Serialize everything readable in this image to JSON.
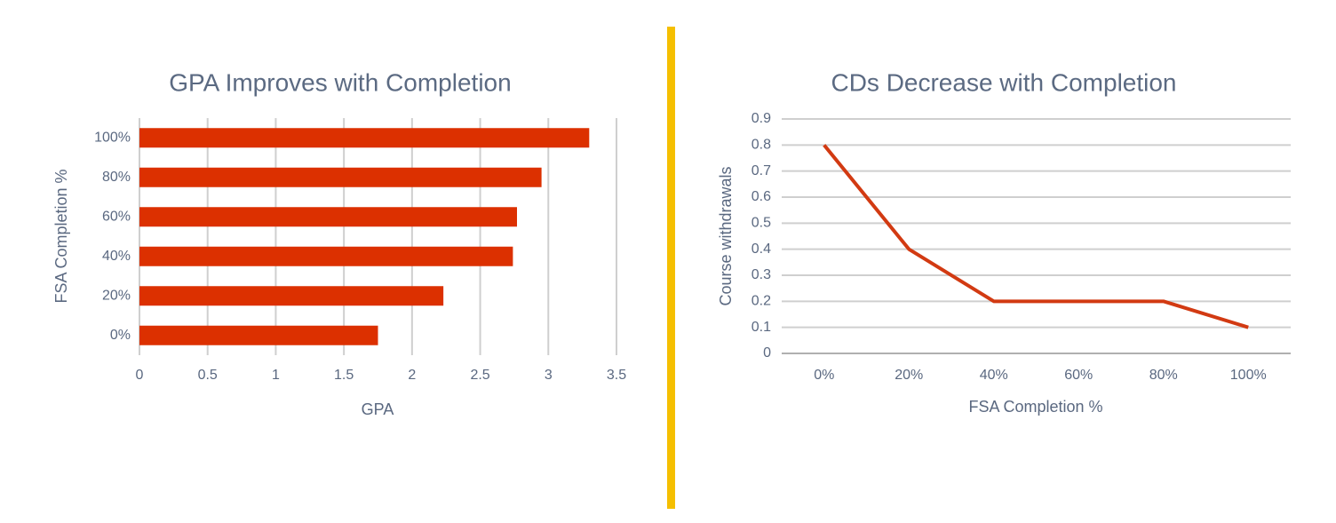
{
  "chart_data": [
    {
      "type": "barh",
      "title": "GPA Improves with Completion",
      "x_label": "GPA",
      "y_label": "FSA Completion %",
      "categories": [
        "0%",
        "20%",
        "40%",
        "60%",
        "80%",
        "100%"
      ],
      "values": [
        1.75,
        2.23,
        2.74,
        2.77,
        2.95,
        3.3
      ],
      "color": "#dc3000",
      "xlim": [
        0,
        3.5
      ],
      "xticks": [
        0,
        0.5,
        1,
        1.5,
        2,
        2.5,
        3,
        3.5
      ],
      "grid": true
    },
    {
      "type": "line",
      "title": "CDs Decrease with Completion",
      "x_label": "FSA Completion %",
      "y_label": "Course withdrawals",
      "categories": [
        "0%",
        "20%",
        "40%",
        "60%",
        "80%",
        "100%"
      ],
      "values": [
        0.8,
        0.4,
        0.2,
        0.2,
        0.2,
        0.1
      ],
      "color": "#d23a12",
      "ylim": [
        0,
        0.9
      ],
      "yticks": [
        0,
        0.1,
        0.2,
        0.3,
        0.4,
        0.5,
        0.6,
        0.7,
        0.8,
        0.9
      ],
      "grid": true
    }
  ]
}
